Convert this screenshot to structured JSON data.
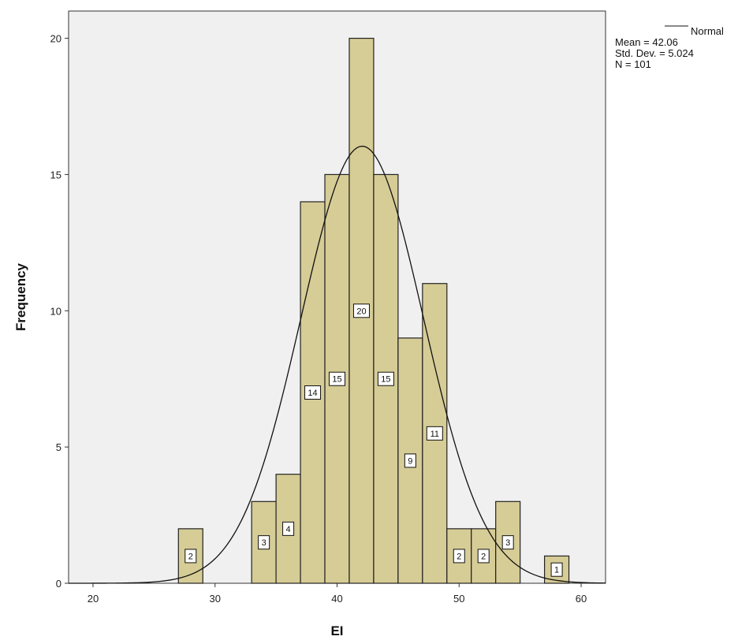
{
  "chart_data": {
    "type": "bar",
    "xlabel": "EI",
    "ylabel": "Frequency",
    "xlim": [
      18,
      62
    ],
    "ylim": [
      0,
      21
    ],
    "x_ticks": [
      20,
      30,
      40,
      50,
      60
    ],
    "y_ticks": [
      0,
      5,
      10,
      15,
      20
    ],
    "bin_width": 2,
    "bins": [
      {
        "start": 27,
        "end": 29,
        "count": 2
      },
      {
        "start": 33,
        "end": 35,
        "count": 3
      },
      {
        "start": 35,
        "end": 37,
        "count": 4
      },
      {
        "start": 37,
        "end": 39,
        "count": 14
      },
      {
        "start": 39,
        "end": 41,
        "count": 15
      },
      {
        "start": 41,
        "end": 43,
        "count": 20
      },
      {
        "start": 43,
        "end": 45,
        "count": 15
      },
      {
        "start": 45,
        "end": 47,
        "count": 9
      },
      {
        "start": 47,
        "end": 49,
        "count": 11
      },
      {
        "start": 49,
        "end": 51,
        "count": 2
      },
      {
        "start": 51,
        "end": 53,
        "count": 2
      },
      {
        "start": 53,
        "end": 55,
        "count": 3
      },
      {
        "start": 57,
        "end": 59,
        "count": 1
      }
    ],
    "normal_curve": {
      "label": "Normal",
      "mean": 42.06,
      "std_dev": 5.024,
      "n": 101
    },
    "legend": {
      "position": "top-right",
      "curve_label": "Normal",
      "lines": [
        "Mean = 42.06",
        "Std. Dev. = 5.024",
        "N = 101"
      ]
    },
    "colors": {
      "bar_fill": "#d6cc96",
      "bar_stroke": "#222222",
      "plot_bg": "#f0f0f0",
      "curve": "#111111"
    },
    "grid": false
  }
}
